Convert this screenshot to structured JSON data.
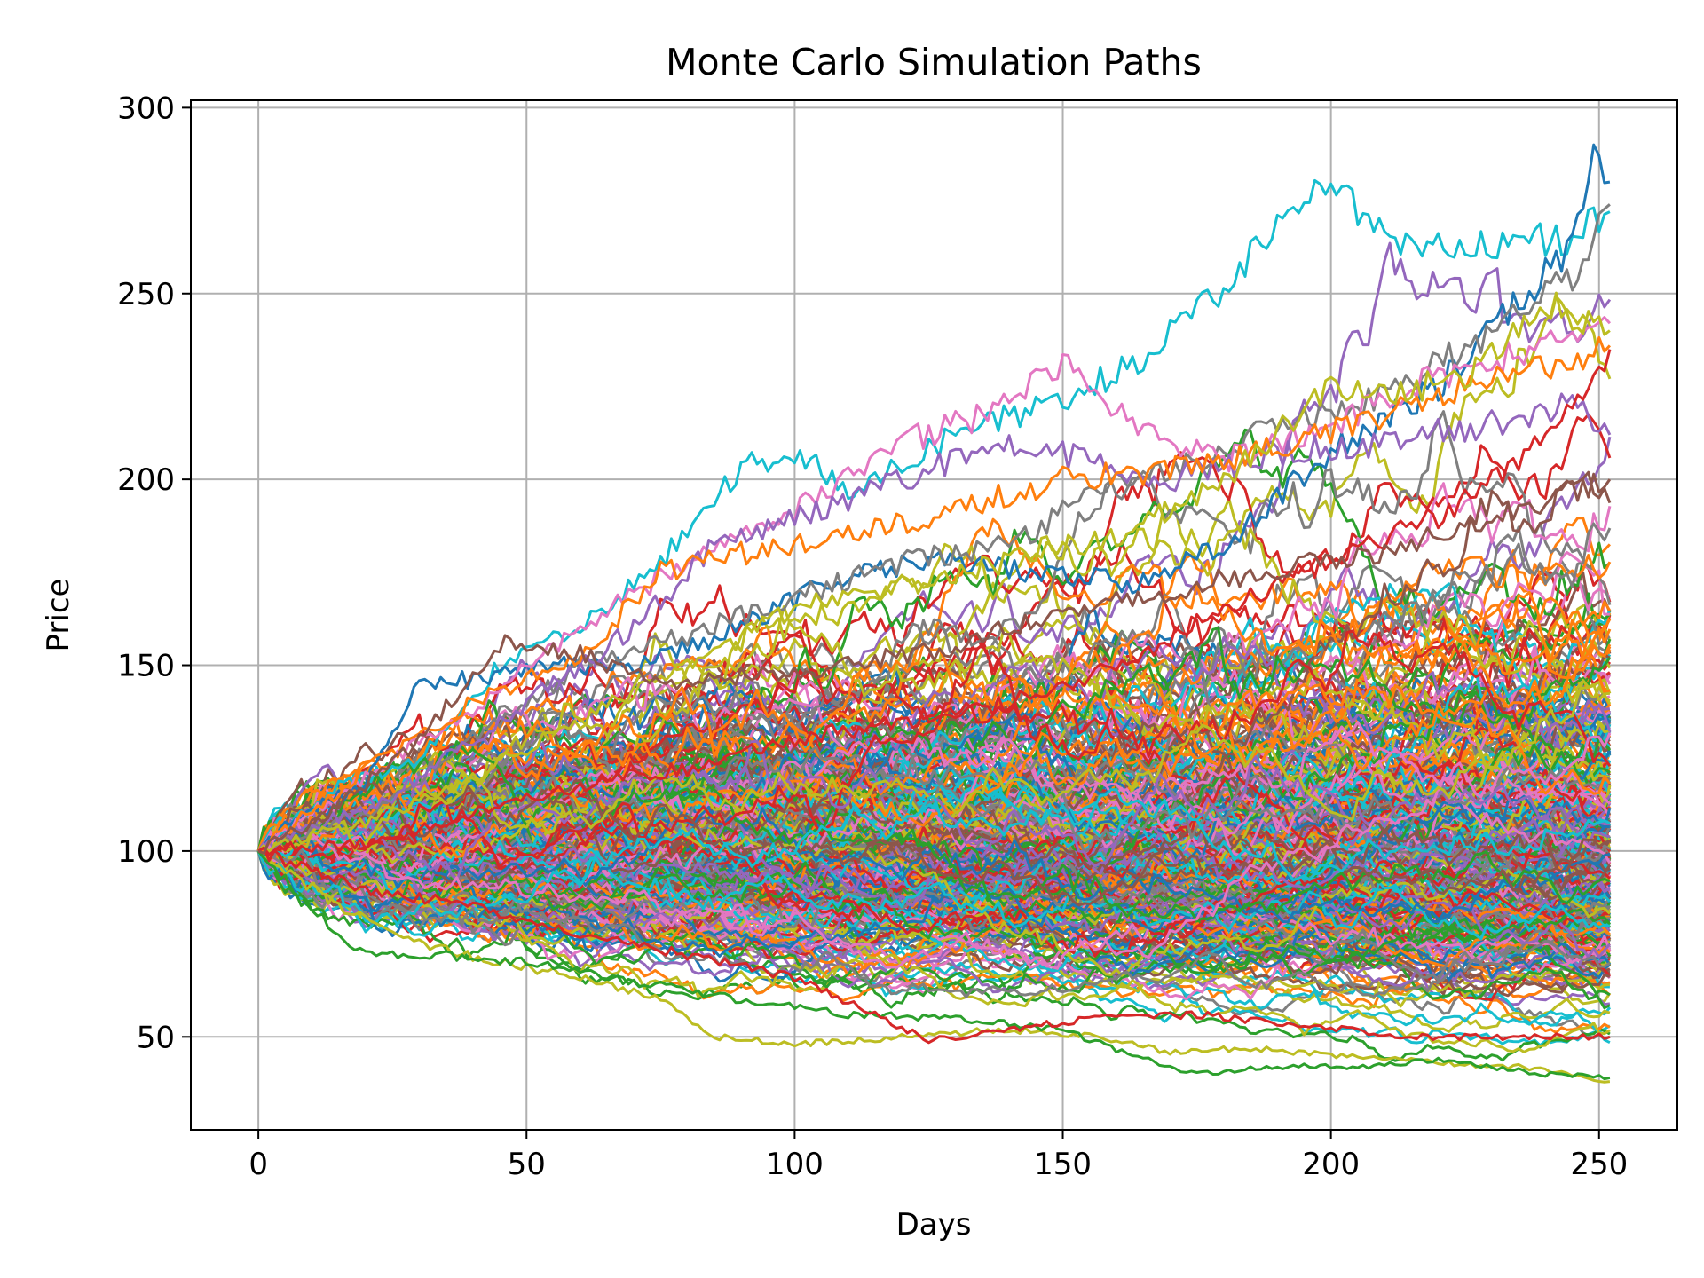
{
  "chart_data": {
    "type": "line",
    "title": "Monte Carlo Simulation Paths",
    "xlabel": "Days",
    "ylabel": "Price",
    "xlim": [
      -12.6,
      264.6
    ],
    "ylim": [
      25,
      302
    ],
    "x_ticks": [
      0,
      50,
      100,
      150,
      200,
      250
    ],
    "y_ticks": [
      50,
      100,
      150,
      200,
      250,
      300
    ],
    "grid": true,
    "legend": "none",
    "n_steps": 252,
    "start_value": 100,
    "colors": [
      "#1f77b4",
      "#ff7f0e",
      "#2ca02c",
      "#d62728",
      "#9467bd",
      "#8c564b",
      "#e377c2",
      "#7f7f7f",
      "#bcbd22",
      "#17becf"
    ],
    "highlight_paths": [
      {
        "color": "#17becf",
        "points": [
          [
            0,
            100
          ],
          [
            15,
            117
          ],
          [
            30,
            125
          ],
          [
            45,
            150
          ],
          [
            60,
            160
          ],
          [
            75,
            178
          ],
          [
            90,
            203
          ],
          [
            100,
            207
          ],
          [
            110,
            198
          ],
          [
            130,
            212
          ],
          [
            150,
            222
          ],
          [
            165,
            232
          ],
          [
            180,
            252
          ],
          [
            190,
            268
          ],
          [
            198,
            283
          ],
          [
            210,
            265
          ],
          [
            230,
            263
          ],
          [
            245,
            265
          ],
          [
            252,
            272
          ]
        ]
      },
      {
        "color": "#1f77b4",
        "points": [
          [
            0,
            100
          ],
          [
            10,
            112
          ],
          [
            20,
            118
          ],
          [
            30,
            145
          ],
          [
            40,
            146
          ],
          [
            50,
            150
          ],
          [
            70,
            150
          ],
          [
            90,
            160
          ],
          [
            110,
            175
          ],
          [
            130,
            178
          ],
          [
            150,
            174
          ],
          [
            165,
            172
          ],
          [
            180,
            182
          ],
          [
            200,
            208
          ],
          [
            220,
            225
          ],
          [
            235,
            248
          ],
          [
            245,
            262
          ],
          [
            249,
            290
          ],
          [
            252,
            280
          ]
        ]
      },
      {
        "color": "#7f7f7f",
        "points": [
          [
            0,
            100
          ],
          [
            20,
            110
          ],
          [
            40,
            130
          ],
          [
            60,
            150
          ],
          [
            80,
            158
          ],
          [
            100,
            168
          ],
          [
            120,
            178
          ],
          [
            140,
            182
          ],
          [
            160,
            200
          ],
          [
            175,
            204
          ],
          [
            190,
            215
          ],
          [
            210,
            222
          ],
          [
            230,
            240
          ],
          [
            245,
            255
          ],
          [
            252,
            274
          ]
        ]
      },
      {
        "color": "#e377c2",
        "points": [
          [
            0,
            100
          ],
          [
            20,
            120
          ],
          [
            40,
            138
          ],
          [
            60,
            160
          ],
          [
            80,
            178
          ],
          [
            100,
            192
          ],
          [
            120,
            210
          ],
          [
            135,
            217
          ],
          [
            150,
            231
          ],
          [
            165,
            212
          ],
          [
            180,
            205
          ],
          [
            200,
            214
          ],
          [
            220,
            228
          ],
          [
            240,
            236
          ],
          [
            252,
            242
          ]
        ]
      },
      {
        "color": "#9467bd",
        "points": [
          [
            0,
            100
          ],
          [
            25,
            115
          ],
          [
            50,
            140
          ],
          [
            70,
            160
          ],
          [
            85,
            182
          ],
          [
            100,
            190
          ],
          [
            120,
            200
          ],
          [
            140,
            210
          ],
          [
            155,
            205
          ],
          [
            170,
            200
          ],
          [
            190,
            207
          ],
          [
            210,
            210
          ],
          [
            230,
            215
          ],
          [
            245,
            220
          ],
          [
            252,
            212
          ]
        ]
      },
      {
        "color": "#ff7f0e",
        "points": [
          [
            0,
            100
          ],
          [
            20,
            122
          ],
          [
            40,
            140
          ],
          [
            60,
            152
          ],
          [
            75,
            175
          ],
          [
            90,
            180
          ],
          [
            105,
            183
          ],
          [
            130,
            192
          ],
          [
            150,
            200
          ],
          [
            165,
            202
          ],
          [
            180,
            205
          ],
          [
            200,
            213
          ],
          [
            220,
            222
          ],
          [
            240,
            230
          ],
          [
            252,
            236
          ]
        ]
      },
      {
        "color": "#bcbd22",
        "points": [
          [
            0,
            100
          ],
          [
            20,
            108
          ],
          [
            40,
            120
          ],
          [
            60,
            135
          ],
          [
            80,
            150
          ],
          [
            100,
            165
          ],
          [
            120,
            172
          ],
          [
            140,
            178
          ],
          [
            160,
            185
          ],
          [
            180,
            200
          ],
          [
            200,
            226
          ],
          [
            210,
            222
          ],
          [
            225,
            228
          ],
          [
            240,
            247
          ],
          [
            252,
            240
          ]
        ]
      },
      {
        "color": "#d62728",
        "points": [
          [
            0,
            100
          ],
          [
            20,
            102
          ],
          [
            40,
            110
          ],
          [
            60,
            118
          ],
          [
            80,
            122
          ],
          [
            100,
            130
          ],
          [
            120,
            135
          ],
          [
            140,
            140
          ],
          [
            160,
            150
          ],
          [
            180,
            165
          ],
          [
            200,
            178
          ],
          [
            220,
            190
          ],
          [
            235,
            205
          ],
          [
            245,
            220
          ],
          [
            252,
            235
          ]
        ]
      },
      {
        "color": "#bcbd22",
        "points": [
          [
            0,
            100
          ],
          [
            15,
            85
          ],
          [
            30,
            75
          ],
          [
            45,
            70
          ],
          [
            60,
            66
          ],
          [
            75,
            60
          ],
          [
            85,
            50
          ],
          [
            100,
            48
          ],
          [
            120,
            50
          ],
          [
            140,
            52
          ],
          [
            155,
            50
          ],
          [
            170,
            46
          ],
          [
            185,
            47
          ],
          [
            200,
            45
          ],
          [
            220,
            43
          ],
          [
            235,
            42
          ],
          [
            252,
            38
          ]
        ]
      },
      {
        "color": "#2ca02c",
        "points": [
          [
            0,
            100
          ],
          [
            10,
            84
          ],
          [
            20,
            72
          ],
          [
            35,
            72
          ],
          [
            50,
            70
          ],
          [
            70,
            65
          ],
          [
            90,
            60
          ],
          [
            110,
            56
          ],
          [
            130,
            55
          ],
          [
            150,
            52
          ],
          [
            165,
            44
          ],
          [
            175,
            40
          ],
          [
            190,
            42
          ],
          [
            205,
            42
          ],
          [
            220,
            44
          ],
          [
            240,
            40
          ],
          [
            252,
            39
          ]
        ]
      },
      {
        "color": "#d62728",
        "points": [
          [
            0,
            100
          ],
          [
            20,
            90
          ],
          [
            40,
            85
          ],
          [
            60,
            78
          ],
          [
            80,
            72
          ],
          [
            100,
            66
          ],
          [
            115,
            56
          ],
          [
            125,
            49
          ],
          [
            140,
            52
          ],
          [
            155,
            55
          ],
          [
            175,
            56
          ],
          [
            195,
            53
          ],
          [
            215,
            50
          ],
          [
            235,
            50
          ],
          [
            252,
            50
          ]
        ]
      },
      {
        "color": "#8c564b",
        "points": [
          [
            0,
            100
          ],
          [
            15,
            112
          ],
          [
            30,
            130
          ],
          [
            45,
            156
          ],
          [
            60,
            153
          ],
          [
            75,
            145
          ],
          [
            90,
            147
          ],
          [
            110,
            150
          ],
          [
            130,
            155
          ],
          [
            150,
            165
          ],
          [
            170,
            170
          ],
          [
            190,
            176
          ],
          [
            210,
            180
          ],
          [
            230,
            190
          ],
          [
            252,
            200
          ]
        ]
      }
    ]
  }
}
